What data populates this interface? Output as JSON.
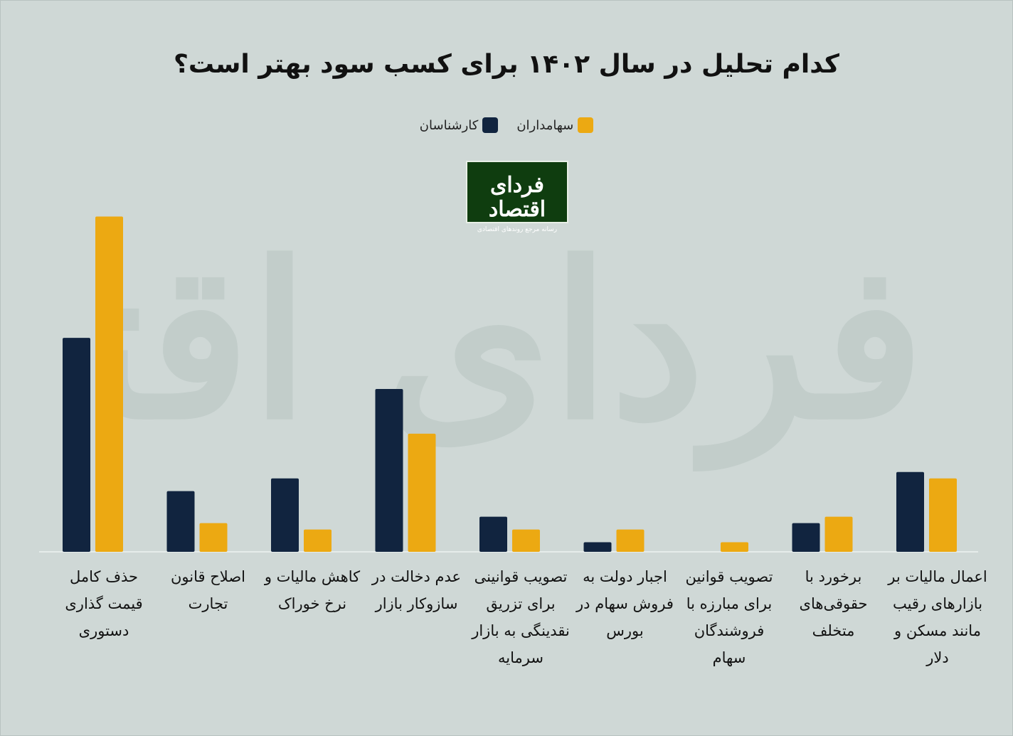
{
  "title": "کدام تحلیل در سال ۱۴۰۲ برای کسب سود بهتر است؟",
  "logo": {
    "name": "فردای اقتصاد",
    "tagline": "رسانه مرجع روندهای اقتصادی"
  },
  "chart_data": {
    "type": "bar",
    "title": "کدام تحلیل در سال ۱۴۰۲ برای کسب سود بهتر است؟",
    "legend_position": "top-center",
    "grid": false,
    "ylim": [
      0,
      53
    ],
    "categories": [
      "حذف کامل قیمت گذاری دستوری",
      "اصلاح قانون تجارت",
      "کاهش مالیات و نرخ خوراک",
      "عدم دخالت در سازوکار بازار",
      "تصویب قوانینی برای تزریق نقدینگی به بازار سرمایه",
      "اجبار دولت به فروش سهام در بورس",
      "تصویب قوانین برای مبارزه با فروشندگان سهام",
      "برخورد با حقوقی‌های متخلف",
      "اعمال مالیات بر بازارهای رقیب مانند مسکن و دلار"
    ],
    "series": [
      {
        "name": "کارشناسان",
        "color": "#11243f",
        "values": [
          33.5,
          9.5,
          11.5,
          25.5,
          5.5,
          1.5,
          0,
          4.5,
          12.5
        ]
      },
      {
        "name": "سهامداران",
        "color": "#eca912",
        "values": [
          52.5,
          4.5,
          3.5,
          18.5,
          3.5,
          3.5,
          1.5,
          5.5,
          11.5
        ]
      }
    ]
  }
}
